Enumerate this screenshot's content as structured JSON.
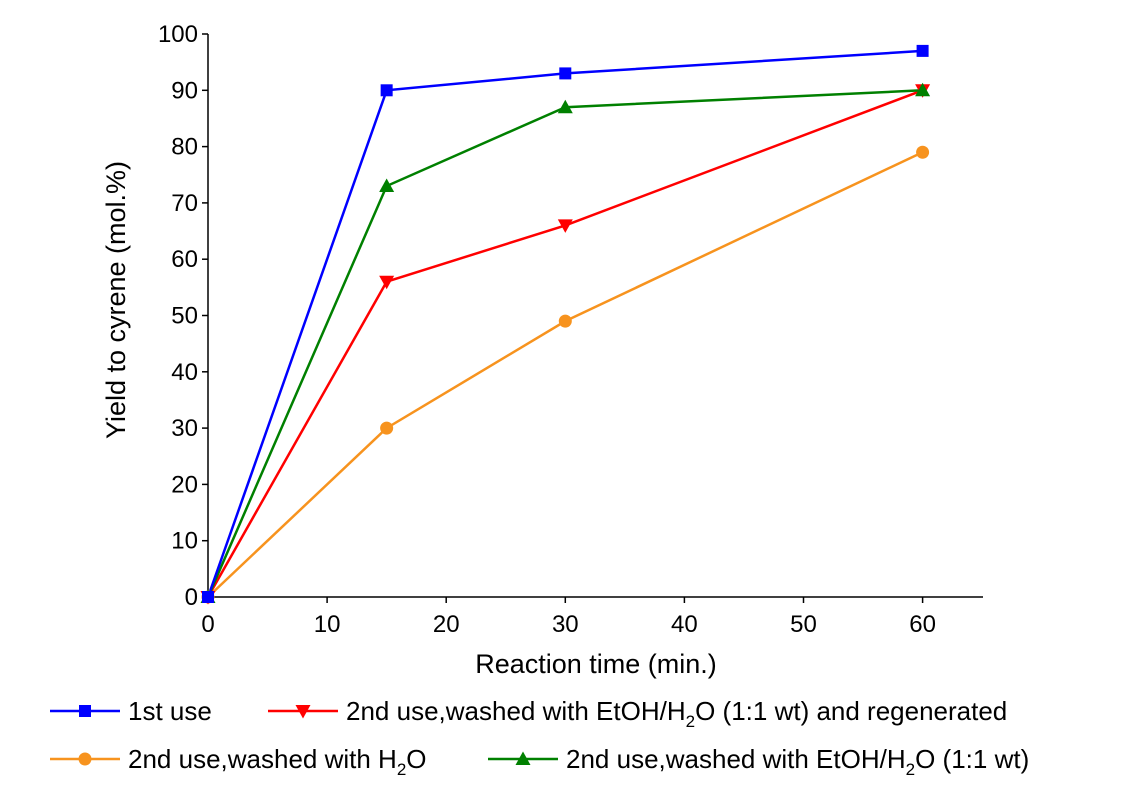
{
  "chart_data": {
    "type": "line",
    "xlabel": "Reaction time (min.)",
    "ylabel": "Yield to cyrene (mol.%)",
    "xlim": [
      0,
      65
    ],
    "ylim": [
      0,
      100
    ],
    "xticks": [
      "0",
      "10",
      "20",
      "30",
      "40",
      "50",
      "60"
    ],
    "yticks": [
      "0",
      "10",
      "20",
      "30",
      "40",
      "50",
      "60",
      "70",
      "80",
      "90",
      "100"
    ],
    "grid": false,
    "legend_placement": "bottom",
    "series": [
      {
        "name": "1st use",
        "color": "#0000ff",
        "marker": "square",
        "x": [
          0,
          15,
          30,
          60
        ],
        "y": [
          0,
          90,
          93,
          97
        ],
        "legend_parts": [
          {
            "t": "1st use"
          }
        ]
      },
      {
        "name": "2nd use,washed with EtOH/H2O (1:1 wt) and regenerated",
        "color": "#ff0000",
        "marker": "triangle-down",
        "x": [
          0,
          15,
          30,
          60
        ],
        "y": [
          0,
          56,
          66,
          90
        ],
        "legend_parts": [
          {
            "t": "2nd use,washed with EtOH/H"
          },
          {
            "t": "2",
            "sub": true
          },
          {
            "t": "O (1:1 wt) and regenerated"
          }
        ]
      },
      {
        "name": "2nd use,washed with H2O",
        "color": "#f7931e",
        "marker": "circle",
        "x": [
          0,
          15,
          30,
          60
        ],
        "y": [
          0,
          30,
          49,
          79
        ],
        "legend_parts": [
          {
            "t": "2nd use,washed with H"
          },
          {
            "t": "2",
            "sub": true
          },
          {
            "t": "O"
          }
        ]
      },
      {
        "name": "2nd use,washed with EtOH/H2O (1:1 wt)",
        "color": "#008000",
        "marker": "triangle-up",
        "x": [
          0,
          15,
          30,
          60
        ],
        "y": [
          0,
          73,
          87,
          90
        ],
        "legend_parts": [
          {
            "t": "2nd use,washed with EtOH/H"
          },
          {
            "t": "2",
            "sub": true
          },
          {
            "t": "O (1:1 wt)"
          }
        ]
      }
    ]
  }
}
